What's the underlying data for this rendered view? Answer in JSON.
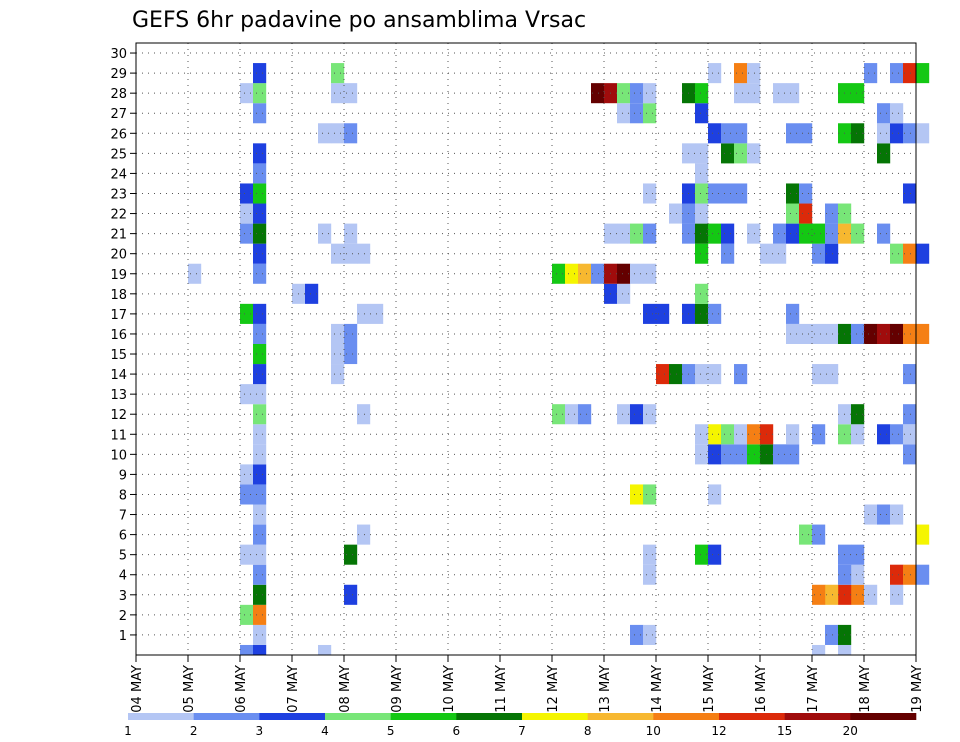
{
  "chart_data": {
    "type": "heatmap",
    "title": "GEFS 6hr padavine po ansamblima Vrsac",
    "x_tick_labels": [
      "04 MAY",
      "05 MAY",
      "06 MAY",
      "07 MAY",
      "08 MAY",
      "09 MAY",
      "10 MAY",
      "11 MAY",
      "12 MAY",
      "13 MAY",
      "14 MAY",
      "15 MAY",
      "16 MAY",
      "17 MAY",
      "18 MAY",
      "19 MAY"
    ],
    "y_tick_labels": [
      "1",
      "2",
      "3",
      "4",
      "5",
      "6",
      "7",
      "8",
      "9",
      "10",
      "11",
      "12",
      "13",
      "14",
      "15",
      "16",
      "17",
      "18",
      "19",
      "20",
      "21",
      "22",
      "23",
      "24",
      "25",
      "26",
      "27",
      "28",
      "29",
      "30"
    ],
    "xlim": [
      "04 MAY",
      "19 MAY"
    ],
    "ylim": [
      0,
      30
    ],
    "time_step_hours": 6,
    "grid": true,
    "legend_placement": "bottom",
    "colorbar": {
      "labels": [
        "1",
        "2",
        "3",
        "4",
        "5",
        "6",
        "7",
        "8",
        "10",
        "12",
        "15",
        "20"
      ],
      "colors": [
        "#b4c6f4",
        "#6a8ef0",
        "#1e40e0",
        "#78e678",
        "#14c814",
        "#057505",
        "#f5f500",
        "#f7b830",
        "#f57f14",
        "#dc2a0a",
        "#a00c0c",
        "#640000"
      ]
    },
    "cells": [
      [
        "06 MAY 00",
        0,
        2
      ],
      [
        "06 MAY 06",
        0,
        3
      ],
      [
        "07 MAY 12",
        0,
        1
      ],
      [
        "17 MAY 00",
        0,
        1
      ],
      [
        "17 MAY 12",
        0,
        1
      ],
      [
        "06 MAY 06",
        1,
        1
      ],
      [
        "13 MAY 12",
        1,
        2
      ],
      [
        "13 MAY 18",
        1,
        1
      ],
      [
        "17 MAY 06",
        1,
        2
      ],
      [
        "17 MAY 12",
        1,
        6
      ],
      [
        "06 MAY 00",
        2,
        4
      ],
      [
        "06 MAY 06",
        2,
        9
      ],
      [
        "06 MAY 06",
        3,
        6
      ],
      [
        "08 MAY 00",
        3,
        3
      ],
      [
        "17 MAY 18",
        3,
        9
      ],
      [
        "17 MAY 12",
        3,
        10
      ],
      [
        "17 MAY 06",
        3,
        8
      ],
      [
        "17 MAY 00",
        3,
        9
      ],
      [
        "18 MAY 00",
        3,
        1
      ],
      [
        "18 MAY 12",
        3,
        1
      ],
      [
        "06 MAY 06",
        4,
        2
      ],
      [
        "17 MAY 18",
        4,
        1
      ],
      [
        "17 MAY 12",
        4,
        2
      ],
      [
        "18 MAY 12",
        4,
        10
      ],
      [
        "18 MAY 18",
        4,
        9
      ],
      [
        "19 MAY 00",
        4,
        2
      ],
      [
        "13 MAY 18",
        4,
        1
      ],
      [
        "06 MAY 00",
        5,
        1
      ],
      [
        "06 MAY 06",
        5,
        1
      ],
      [
        "08 MAY 00",
        5,
        6
      ],
      [
        "13 MAY 18",
        5,
        1
      ],
      [
        "14 MAY 18",
        5,
        5
      ],
      [
        "15 MAY 00",
        5,
        3
      ],
      [
        "17 MAY 12",
        5,
        2
      ],
      [
        "17 MAY 18",
        5,
        2
      ],
      [
        "06 MAY 06",
        6,
        2
      ],
      [
        "08 MAY 06",
        6,
        1
      ],
      [
        "16 MAY 18",
        6,
        4
      ],
      [
        "17 MAY 00",
        6,
        2
      ],
      [
        "19 MAY 00",
        6,
        7
      ],
      [
        "06 MAY 06",
        7,
        1
      ],
      [
        "18 MAY 00",
        7,
        1
      ],
      [
        "18 MAY 06",
        7,
        2
      ],
      [
        "18 MAY 12",
        7,
        1
      ],
      [
        "06 MAY 00",
        8,
        2
      ],
      [
        "06 MAY 06",
        8,
        2
      ],
      [
        "13 MAY 12",
        8,
        7
      ],
      [
        "13 MAY 18",
        8,
        4
      ],
      [
        "15 MAY 00",
        8,
        1
      ],
      [
        "06 MAY 00",
        9,
        1
      ],
      [
        "06 MAY 06",
        9,
        3
      ],
      [
        "06 MAY 06",
        10,
        1
      ],
      [
        "14 MAY 18",
        10,
        1
      ],
      [
        "15 MAY 00",
        10,
        3
      ],
      [
        "15 MAY 06",
        10,
        2
      ],
      [
        "15 MAY 12",
        10,
        2
      ],
      [
        "15 MAY 18",
        10,
        5
      ],
      [
        "16 MAY 00",
        10,
        6
      ],
      [
        "16 MAY 06",
        10,
        2
      ],
      [
        "16 MAY 12",
        10,
        2
      ],
      [
        "18 MAY 18",
        10,
        2
      ],
      [
        "06 MAY 06",
        11,
        1
      ],
      [
        "15 MAY 00",
        11,
        7
      ],
      [
        "15 MAY 06",
        11,
        4
      ],
      [
        "15 MAY 12",
        11,
        1
      ],
      [
        "15 MAY 18",
        11,
        9
      ],
      [
        "16 MAY 00",
        11,
        10
      ],
      [
        "16 MAY 12",
        11,
        1
      ],
      [
        "17 MAY 00",
        11,
        2
      ],
      [
        "17 MAY 12",
        11,
        4
      ],
      [
        "18 MAY 06",
        11,
        3
      ],
      [
        "18 MAY 12",
        11,
        2
      ],
      [
        "18 MAY 18",
        11,
        1
      ],
      [
        "17 MAY 18",
        11,
        1
      ],
      [
        "14 MAY 18",
        11,
        1
      ],
      [
        "06 MAY 06",
        12,
        4
      ],
      [
        "08 MAY 06",
        12,
        1
      ],
      [
        "12 MAY 00",
        12,
        4
      ],
      [
        "12 MAY 06",
        12,
        1
      ],
      [
        "12 MAY 12",
        12,
        2
      ],
      [
        "13 MAY 06",
        12,
        1
      ],
      [
        "13 MAY 12",
        12,
        3
      ],
      [
        "13 MAY 18",
        12,
        1
      ],
      [
        "17 MAY 12",
        12,
        1
      ],
      [
        "17 MAY 18",
        12,
        6
      ],
      [
        "18 MAY 18",
        12,
        2
      ],
      [
        "06 MAY 00",
        13,
        1
      ],
      [
        "06 MAY 06",
        13,
        1
      ],
      [
        "06 MAY 06",
        14,
        3
      ],
      [
        "07 MAY 18",
        14,
        1
      ],
      [
        "14 MAY 00",
        14,
        10
      ],
      [
        "14 MAY 06",
        14,
        6
      ],
      [
        "14 MAY 12",
        14,
        2
      ],
      [
        "14 MAY 18",
        14,
        1
      ],
      [
        "15 MAY 00",
        14,
        1
      ],
      [
        "15 MAY 12",
        14,
        2
      ],
      [
        "17 MAY 00",
        14,
        1
      ],
      [
        "17 MAY 06",
        14,
        1
      ],
      [
        "18 MAY 18",
        14,
        2
      ],
      [
        "06 MAY 06",
        15,
        5
      ],
      [
        "08 MAY 00",
        15,
        2
      ],
      [
        "07 MAY 18",
        15,
        1
      ],
      [
        "06 MAY 06",
        16,
        2
      ],
      [
        "07 MAY 18",
        16,
        1
      ],
      [
        "08 MAY 00",
        16,
        2
      ],
      [
        "16 MAY 12",
        16,
        1
      ],
      [
        "16 MAY 18",
        16,
        1
      ],
      [
        "17 MAY 00",
        16,
        1
      ],
      [
        "17 MAY 06",
        16,
        1
      ],
      [
        "17 MAY 12",
        16,
        6
      ],
      [
        "17 MAY 18",
        16,
        2
      ],
      [
        "18 MAY 00",
        16,
        12
      ],
      [
        "18 MAY 06",
        16,
        11
      ],
      [
        "18 MAY 12",
        16,
        12
      ],
      [
        "18 MAY 18",
        16,
        9
      ],
      [
        "19 MAY 00",
        16,
        9
      ],
      [
        "06 MAY 00",
        17,
        5
      ],
      [
        "06 MAY 06",
        17,
        3
      ],
      [
        "08 MAY 06",
        17,
        1
      ],
      [
        "08 MAY 12",
        17,
        1
      ],
      [
        "13 MAY 18",
        17,
        3
      ],
      [
        "14 MAY 00",
        17,
        3
      ],
      [
        "14 MAY 12",
        17,
        3
      ],
      [
        "14 MAY 18",
        17,
        6
      ],
      [
        "15 MAY 00",
        17,
        2
      ],
      [
        "16 MAY 12",
        17,
        2
      ],
      [
        "07 MAY 00",
        18,
        1
      ],
      [
        "07 MAY 06",
        18,
        3
      ],
      [
        "13 MAY 00",
        18,
        3
      ],
      [
        "13 MAY 06",
        18,
        1
      ],
      [
        "14 MAY 18",
        18,
        4
      ],
      [
        "05 MAY 00",
        19,
        1
      ],
      [
        "06 MAY 06",
        19,
        2
      ],
      [
        "12 MAY 00",
        19,
        5
      ],
      [
        "12 MAY 06",
        19,
        7
      ],
      [
        "12 MAY 12",
        19,
        8
      ],
      [
        "12 MAY 18",
        19,
        2
      ],
      [
        "13 MAY 00",
        19,
        11
      ],
      [
        "13 MAY 06",
        19,
        12
      ],
      [
        "13 MAY 12",
        19,
        1
      ],
      [
        "13 MAY 18",
        19,
        1
      ],
      [
        "06 MAY 06",
        20,
        3
      ],
      [
        "07 MAY 18",
        20,
        1
      ],
      [
        "08 MAY 00",
        20,
        1
      ],
      [
        "08 MAY 06",
        20,
        1
      ],
      [
        "14 MAY 18",
        20,
        5
      ],
      [
        "15 MAY 06",
        20,
        2
      ],
      [
        "16 MAY 00",
        20,
        1
      ],
      [
        "16 MAY 06",
        20,
        1
      ],
      [
        "17 MAY 00",
        20,
        2
      ],
      [
        "17 MAY 06",
        20,
        3
      ],
      [
        "18 MAY 12",
        20,
        4
      ],
      [
        "18 MAY 18",
        20,
        9
      ],
      [
        "19 MAY 00",
        20,
        3
      ],
      [
        "06 MAY 00",
        21,
        2
      ],
      [
        "06 MAY 06",
        21,
        6
      ],
      [
        "07 MAY 12",
        21,
        1
      ],
      [
        "08 MAY 00",
        21,
        1
      ],
      [
        "13 MAY 00",
        21,
        1
      ],
      [
        "13 MAY 06",
        21,
        1
      ],
      [
        "13 MAY 12",
        21,
        4
      ],
      [
        "13 MAY 18",
        21,
        2
      ],
      [
        "14 MAY 12",
        21,
        2
      ],
      [
        "14 MAY 18",
        21,
        6
      ],
      [
        "15 MAY 00",
        21,
        5
      ],
      [
        "15 MAY 06",
        21,
        3
      ],
      [
        "15 MAY 18",
        21,
        1
      ],
      [
        "16 MAY 06",
        21,
        2
      ],
      [
        "16 MAY 12",
        21,
        3
      ],
      [
        "16 MAY 18",
        21,
        5
      ],
      [
        "17 MAY 00",
        21,
        5
      ],
      [
        "17 MAY 06",
        21,
        2
      ],
      [
        "17 MAY 12",
        21,
        8
      ],
      [
        "17 MAY 18",
        21,
        4
      ],
      [
        "18 MAY 06",
        21,
        2
      ],
      [
        "06 MAY 00",
        22,
        1
      ],
      [
        "06 MAY 06",
        22,
        3
      ],
      [
        "14 MAY 06",
        22,
        1
      ],
      [
        "14 MAY 12",
        22,
        2
      ],
      [
        "16 MAY 12",
        22,
        4
      ],
      [
        "16 MAY 18",
        22,
        10
      ],
      [
        "17 MAY 06",
        22,
        2
      ],
      [
        "17 MAY 12",
        22,
        4
      ],
      [
        "14 MAY 18",
        22,
        1
      ],
      [
        "06 MAY 00",
        23,
        3
      ],
      [
        "06 MAY 06",
        23,
        5
      ],
      [
        "13 MAY 18",
        23,
        1
      ],
      [
        "14 MAY 12",
        23,
        3
      ],
      [
        "14 MAY 18",
        23,
        4
      ],
      [
        "15 MAY 00",
        23,
        2
      ],
      [
        "15 MAY 06",
        23,
        2
      ],
      [
        "15 MAY 12",
        23,
        2
      ],
      [
        "16 MAY 12",
        23,
        6
      ],
      [
        "16 MAY 18",
        23,
        2
      ],
      [
        "18 MAY 18",
        23,
        3
      ],
      [
        "06 MAY 06",
        24,
        2
      ],
      [
        "14 MAY 18",
        24,
        1
      ],
      [
        "06 MAY 06",
        25,
        3
      ],
      [
        "14 MAY 12",
        25,
        1
      ],
      [
        "14 MAY 18",
        25,
        1
      ],
      [
        "15 MAY 06",
        25,
        6
      ],
      [
        "15 MAY 12",
        25,
        4
      ],
      [
        "15 MAY 18",
        25,
        1
      ],
      [
        "18 MAY 06",
        25,
        6
      ],
      [
        "07 MAY 12",
        26,
        1
      ],
      [
        "07 MAY 18",
        26,
        1
      ],
      [
        "08 MAY 00",
        26,
        2
      ],
      [
        "15 MAY 00",
        26,
        3
      ],
      [
        "15 MAY 06",
        26,
        2
      ],
      [
        "15 MAY 12",
        26,
        2
      ],
      [
        "16 MAY 12",
        26,
        2
      ],
      [
        "16 MAY 18",
        26,
        2
      ],
      [
        "17 MAY 12",
        26,
        5
      ],
      [
        "17 MAY 18",
        26,
        6
      ],
      [
        "18 MAY 06",
        26,
        1
      ],
      [
        "18 MAY 12",
        26,
        3
      ],
      [
        "18 MAY 18",
        26,
        2
      ],
      [
        "19 MAY 00",
        26,
        1
      ],
      [
        "06 MAY 06",
        27,
        2
      ],
      [
        "13 MAY 06",
        27,
        1
      ],
      [
        "13 MAY 12",
        27,
        2
      ],
      [
        "13 MAY 18",
        27,
        4
      ],
      [
        "14 MAY 18",
        27,
        3
      ],
      [
        "18 MAY 06",
        27,
        2
      ],
      [
        "18 MAY 12",
        27,
        1
      ],
      [
        "06 MAY 00",
        28,
        1
      ],
      [
        "06 MAY 06",
        28,
        4
      ],
      [
        "07 MAY 18",
        28,
        1
      ],
      [
        "08 MAY 00",
        28,
        1
      ],
      [
        "12 MAY 18",
        28,
        12
      ],
      [
        "13 MAY 00",
        28,
        11
      ],
      [
        "13 MAY 06",
        28,
        4
      ],
      [
        "13 MAY 12",
        28,
        2
      ],
      [
        "13 MAY 18",
        28,
        1
      ],
      [
        "14 MAY 12",
        28,
        6
      ],
      [
        "14 MAY 18",
        28,
        5
      ],
      [
        "15 MAY 12",
        28,
        1
      ],
      [
        "15 MAY 18",
        28,
        1
      ],
      [
        "16 MAY 06",
        28,
        1
      ],
      [
        "16 MAY 12",
        28,
        1
      ],
      [
        "17 MAY 12",
        28,
        5
      ],
      [
        "17 MAY 18",
        28,
        5
      ],
      [
        "06 MAY 06",
        29,
        3
      ],
      [
        "07 MAY 18",
        29,
        4
      ],
      [
        "15 MAY 00",
        29,
        1
      ],
      [
        "15 MAY 12",
        29,
        9
      ],
      [
        "15 MAY 18",
        29,
        1
      ],
      [
        "18 MAY 00",
        29,
        2
      ],
      [
        "18 MAY 12",
        29,
        2
      ],
      [
        "18 MAY 18",
        29,
        10
      ],
      [
        "19 MAY 00",
        29,
        5
      ]
    ]
  }
}
